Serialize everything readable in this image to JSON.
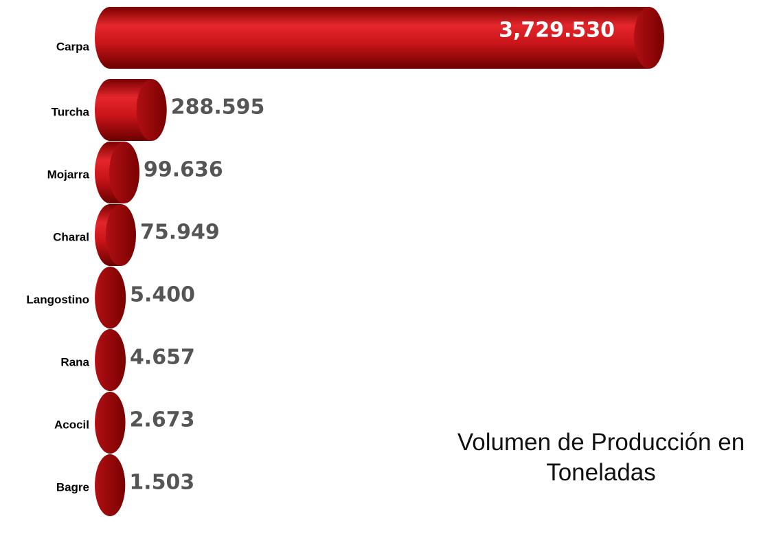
{
  "chart_data": {
    "type": "bar",
    "orientation": "horizontal",
    "title": "Volumen de Producción en Toneladas",
    "categories": [
      "Carpa",
      "Turcha",
      "Mojarra",
      "Charal",
      "Langostino",
      "Rana",
      "Acocil",
      "Bagre"
    ],
    "values": [
      3729.53,
      288.595,
      99.636,
      75.949,
      5.4,
      4.657,
      2.673,
      1.503
    ],
    "value_labels": [
      "3,729.530",
      "288.595",
      "99.636",
      "75.949",
      "5.400",
      "4.657",
      "2.673",
      "1.503"
    ],
    "color": "#d81e22"
  }
}
